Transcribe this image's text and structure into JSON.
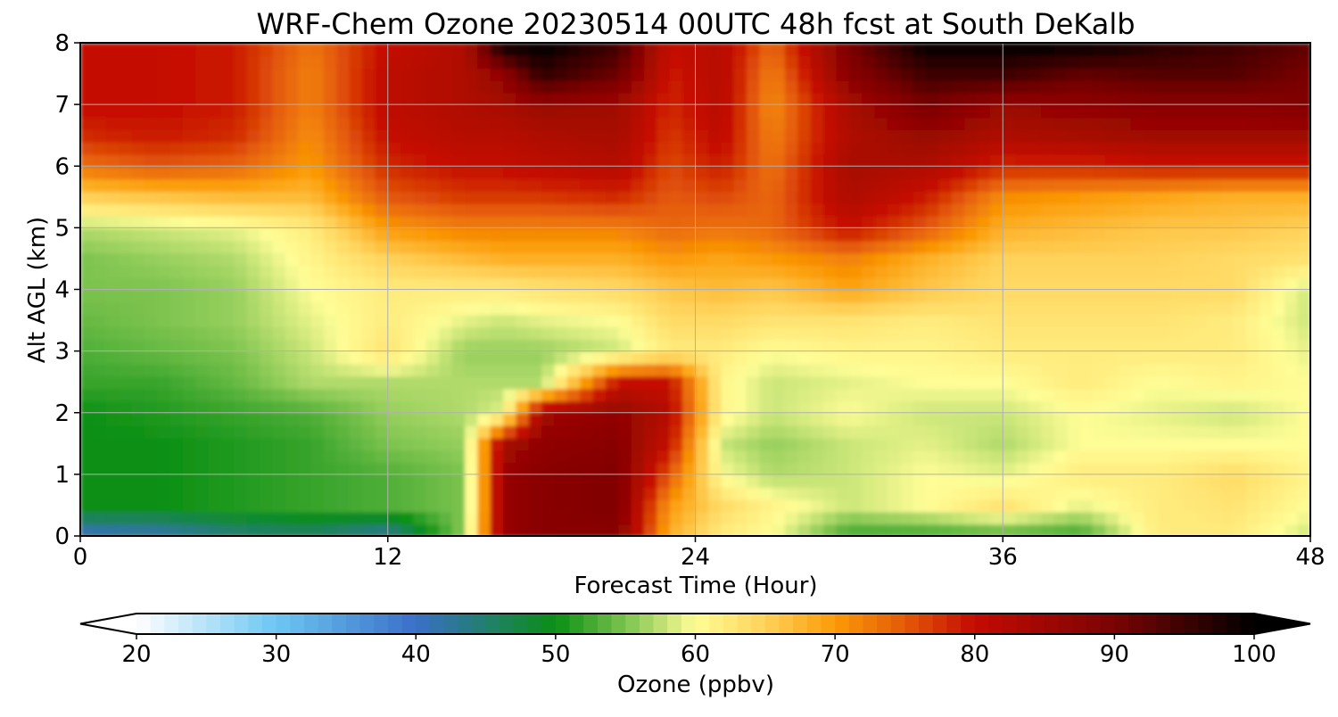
{
  "chart_data": {
    "type": "heatmap",
    "title": "WRF-Chem Ozone  20230514 00UTC 48h fcst at South DeKalb",
    "xlabel": "Forecast Time (Hour)",
    "ylabel": "Alt AGL (km)",
    "xlim": [
      0,
      48
    ],
    "ylim": [
      0,
      8
    ],
    "xticks": [
      "0",
      "12",
      "24",
      "36",
      "48"
    ],
    "yticks": [
      "0",
      "1",
      "2",
      "3",
      "4",
      "5",
      "6",
      "7",
      "8"
    ],
    "grid": true,
    "colorbar": {
      "label": "Ozone  (ppbv)",
      "min": 20,
      "max": 100,
      "extend": "both",
      "ticks": [
        "20",
        "30",
        "40",
        "50",
        "60",
        "70",
        "80",
        "90",
        "100"
      ],
      "color_stops": [
        {
          "value": 20,
          "color": "#ffffff"
        },
        {
          "value": 30,
          "color": "#6cc6f2"
        },
        {
          "value": 40,
          "color": "#3a6fc8"
        },
        {
          "value": 50,
          "color": "#0a8f14"
        },
        {
          "value": 55,
          "color": "#7cc34e"
        },
        {
          "value": 60,
          "color": "#fffd96"
        },
        {
          "value": 65,
          "color": "#ffd25a"
        },
        {
          "value": 70,
          "color": "#fb9a06"
        },
        {
          "value": 75,
          "color": "#e45a08"
        },
        {
          "value": 80,
          "color": "#c40a02"
        },
        {
          "value": 90,
          "color": "#7a0404"
        },
        {
          "value": 100,
          "color": "#000000"
        }
      ]
    },
    "hours": [
      0,
      3,
      6,
      9,
      12,
      15,
      16.5,
      18,
      21,
      23,
      25,
      27,
      30,
      33,
      36,
      39,
      42,
      45,
      48
    ],
    "altitudes_km": [
      0,
      0.5,
      1,
      1.5,
      2,
      2.5,
      3,
      3.5,
      4,
      4.5,
      5,
      5.5,
      6,
      6.5,
      7,
      7.5,
      8
    ],
    "ozone_ppbv": [
      [
        40,
        41,
        44,
        45,
        42,
        56,
        86,
        88,
        88,
        68,
        62,
        60,
        52,
        52,
        53,
        52,
        62,
        62,
        58
      ],
      [
        50,
        50,
        51,
        52,
        53,
        55,
        86,
        88,
        89,
        70,
        64,
        61,
        58,
        60,
        63,
        59,
        62,
        63,
        60
      ],
      [
        50,
        50,
        51,
        52,
        53,
        55,
        86,
        88,
        89,
        75,
        60,
        57,
        58,
        60,
        59,
        62,
        62,
        64,
        61
      ],
      [
        50,
        50,
        51,
        52,
        55,
        56,
        84,
        87,
        88,
        80,
        58,
        56,
        58,
        59,
        57,
        60,
        60,
        60,
        60
      ],
      [
        50,
        51,
        52,
        53,
        56,
        57,
        59,
        85,
        87,
        82,
        61,
        58,
        60,
        58,
        58,
        60,
        59,
        58,
        60
      ],
      [
        52,
        52,
        54,
        57,
        57,
        57,
        57,
        57,
        80,
        80,
        61,
        58,
        59,
        60,
        60,
        62,
        60,
        61,
        60
      ],
      [
        53,
        54,
        55,
        58,
        63,
        56,
        56,
        56,
        58,
        62,
        62,
        60,
        61,
        61,
        62,
        62,
        62,
        62,
        59
      ],
      [
        54,
        55,
        56,
        59,
        62,
        59,
        58,
        59,
        60,
        64,
        64,
        63,
        63,
        62,
        63,
        63,
        63,
        62,
        58
      ],
      [
        55,
        55,
        56,
        60,
        62,
        62,
        62,
        63,
        64,
        66,
        67,
        66,
        69,
        66,
        64,
        64,
        64,
        64,
        58
      ],
      [
        55,
        56,
        57,
        61,
        65,
        67,
        68,
        68,
        68,
        70,
        69,
        70,
        72,
        68,
        65,
        65,
        65,
        64,
        63
      ],
      [
        57,
        58,
        59,
        62,
        70,
        72,
        72,
        72,
        72,
        74,
        73,
        74,
        80,
        75,
        68,
        67,
        66,
        66,
        65
      ],
      [
        65,
        66,
        67,
        67,
        75,
        77,
        77,
        77,
        78,
        75,
        76,
        74,
        83,
        79,
        71,
        70,
        69,
        68,
        68
      ],
      [
        73,
        75,
        74,
        70,
        78,
        80,
        80,
        81,
        82,
        76,
        79,
        73,
        84,
        83,
        78,
        78,
        79,
        79,
        79
      ],
      [
        78,
        79,
        78,
        71,
        80,
        82,
        82,
        83,
        84,
        77,
        81,
        72,
        83,
        86,
        83,
        84,
        85,
        85,
        85
      ],
      [
        80,
        80,
        79,
        72,
        81,
        83,
        84,
        86,
        85,
        78,
        82,
        71,
        84,
        90,
        86,
        87,
        88,
        88,
        89
      ],
      [
        80,
        80,
        79,
        72,
        81,
        83,
        87,
        96,
        91,
        79,
        82,
        72,
        88,
        95,
        95,
        92,
        93,
        93,
        90
      ],
      [
        80,
        80,
        79,
        73,
        80,
        83,
        100,
        100,
        95,
        80,
        82,
        74,
        90,
        100,
        100,
        100,
        97,
        95,
        92
      ]
    ]
  }
}
